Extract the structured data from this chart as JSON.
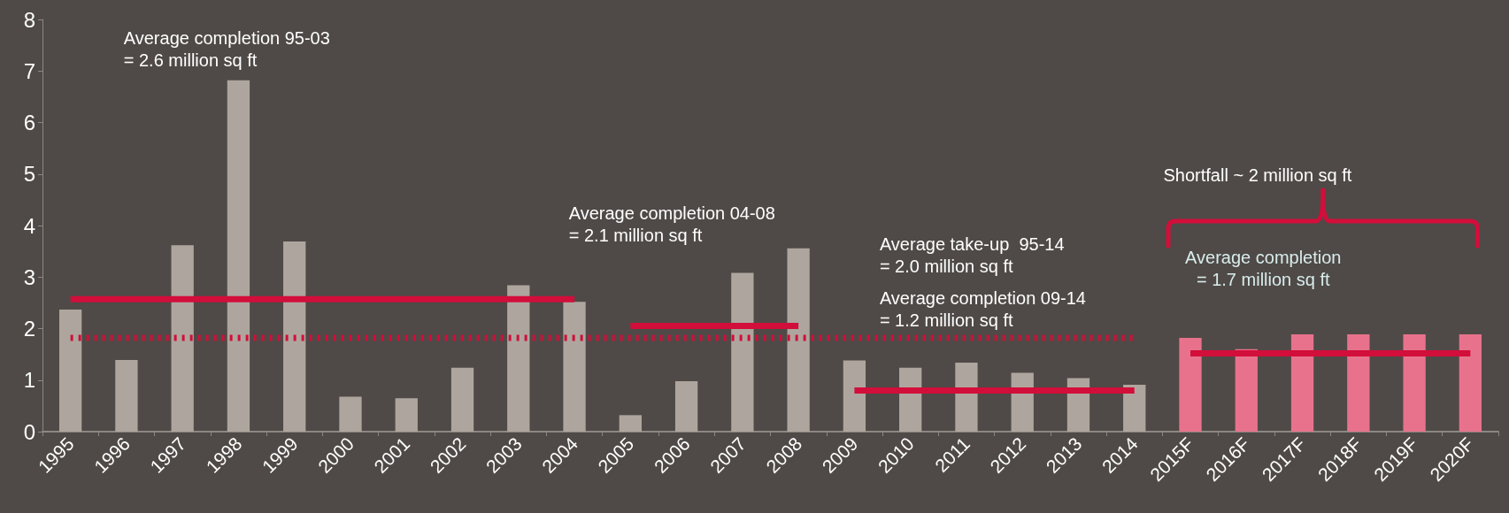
{
  "chart_data": {
    "type": "bar",
    "categories": [
      "1995",
      "1996",
      "1997",
      "1998",
      "1999",
      "2000",
      "2001",
      "2002",
      "2003",
      "2004",
      "2005",
      "2006",
      "2007",
      "2008",
      "2009",
      "2010",
      "2011",
      "2012",
      "2013",
      "2014",
      "2015F",
      "2016F",
      "2017F",
      "2018F",
      "2019F",
      "2020F"
    ],
    "series": [
      {
        "colors": [
          "#aea69e",
          "#aea69e",
          "#aea69e",
          "#aea69e",
          "#aea69e",
          "#aea69e",
          "#aea69e",
          "#aea69e",
          "#aea69e",
          "#aea69e",
          "#aea69e",
          "#aea69e",
          "#aea69e",
          "#aea69e",
          "#aea69e",
          "#aea69e",
          "#aea69e",
          "#aea69e",
          "#aea69e",
          "#aea69e",
          "#e8728c",
          "#e8728c",
          "#e8728c",
          "#e8728c",
          "#e8728c",
          "#e8728c"
        ],
        "values": [
          2.37,
          1.39,
          3.62,
          6.82,
          3.69,
          0.68,
          0.65,
          1.24,
          2.84,
          2.52,
          0.32,
          0.98,
          3.08,
          3.56,
          1.38,
          1.24,
          1.34,
          1.14,
          1.04,
          0.91,
          1.82,
          1.6,
          1.89,
          1.89,
          1.89,
          1.89
        ]
      },
      {
        "type": "line",
        "color": "#d20e3a",
        "line_style": "solid",
        "values": [
          2.57,
          2.57,
          2.57,
          2.57,
          2.57,
          2.57,
          2.57,
          2.57,
          2.57,
          2.57,
          null,
          null,
          null,
          null,
          null,
          null,
          null,
          null,
          null,
          null,
          null,
          null,
          null,
          null,
          null,
          null
        ]
      },
      {
        "type": "line",
        "color": "#d20e3a",
        "line_style": "dotted",
        "values": [
          1.82,
          1.82,
          1.82,
          1.82,
          1.82,
          1.82,
          1.82,
          1.82,
          1.82,
          1.82,
          1.82,
          1.82,
          1.82,
          1.82,
          1.82,
          1.82,
          1.82,
          1.82,
          1.82,
          1.82,
          null,
          null,
          null,
          null,
          null,
          null
        ]
      },
      {
        "type": "line",
        "color": "#d20e3a",
        "line_style": "solid",
        "values": [
          null,
          null,
          null,
          null,
          null,
          null,
          null,
          null,
          null,
          null,
          2.05,
          2.05,
          2.05,
          2.05,
          null,
          null,
          null,
          null,
          null,
          null,
          null,
          null,
          null,
          null,
          null,
          null
        ]
      },
      {
        "type": "line",
        "color": "#d20e3a",
        "line_style": "solid",
        "values": [
          null,
          null,
          null,
          null,
          null,
          null,
          null,
          null,
          null,
          null,
          null,
          null,
          null,
          null,
          0.8,
          0.8,
          0.8,
          0.8,
          0.8,
          0.8,
          null,
          null,
          null,
          null,
          null,
          null
        ]
      },
      {
        "type": "line",
        "color": "#d20e3a",
        "line_style": "solid",
        "values": [
          null,
          null,
          null,
          null,
          null,
          null,
          null,
          null,
          null,
          null,
          null,
          null,
          null,
          null,
          null,
          null,
          null,
          null,
          null,
          null,
          1.52,
          1.52,
          1.52,
          1.52,
          1.52,
          1.52
        ]
      }
    ],
    "ylim": [
      0,
      8
    ],
    "yticks": [
      0,
      1,
      2,
      3,
      4,
      5,
      6,
      7,
      8
    ],
    "grid": false,
    "marker": "none",
    "annotations": [
      "Average completion 95-03\n= 2.6 million sq ft",
      "Average completion 04-08\n= 2.1 million sq ft",
      "Average take-up  95-14\n= 2.0 million sq ft",
      "Average completion 09-14\n= 1.2 million sq ft",
      "Shortfall ~ 2 million sq ft",
      "Average completion\n= 1.7 million sq ft"
    ]
  }
}
